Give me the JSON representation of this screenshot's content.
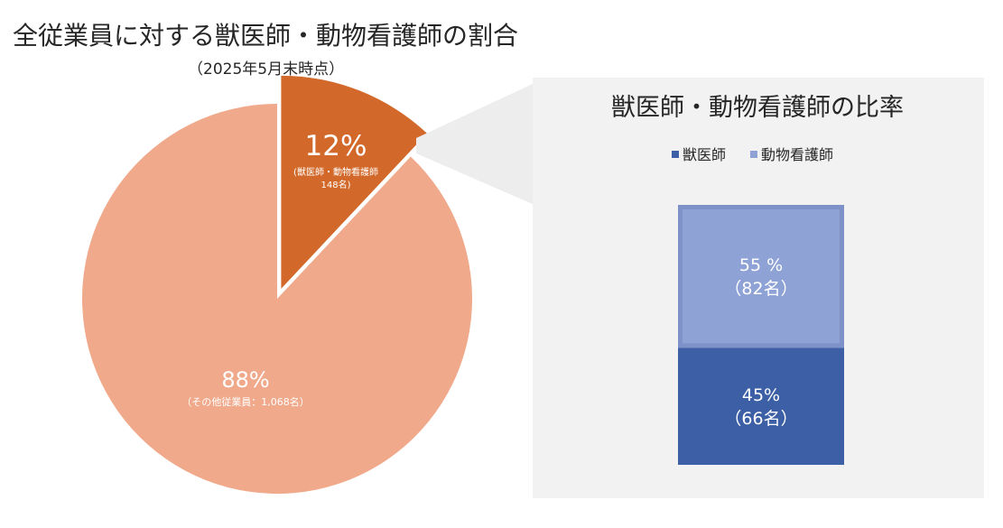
{
  "header": {
    "title": "全従業員に対する獣医師・動物看護師の割合",
    "subtitle": "（2025年5月末時点）"
  },
  "colors": {
    "pie_main": "#F0A98B",
    "pie_highlight": "#D2692A",
    "bar_vet": "#3C5FA6",
    "bar_nurse": "#8FA2D6",
    "bar_nurse_border": "#7E91C8",
    "panel_bg": "#F2F2F2",
    "connector": "#EDEDED"
  },
  "chart_data": [
    {
      "type": "pie",
      "title": "全従業員に対する獣医師・動物看護師の割合",
      "subtitle": "（2025年5月末時点）",
      "slices": [
        {
          "label": "獣医師・動物看護師",
          "value": 12,
          "count": 148,
          "pct_label": "12%",
          "sub_label_1": "(獣医師・動物看護師",
          "sub_label_2": "148名)"
        },
        {
          "label": "その他従業員",
          "value": 88,
          "count": 1068,
          "pct_label": "88%",
          "sub_label_1": "（その他従業員：1,068名）"
        }
      ]
    },
    {
      "type": "bar",
      "title": "獣医師・動物看護師の比率",
      "legend_position": "top",
      "series": [
        {
          "name": "獣医師",
          "value": 45,
          "count": 66,
          "pct_label": "45%",
          "count_label": "（66名）"
        },
        {
          "name": "動物看護師",
          "value": 55,
          "count": 82,
          "pct_label": "55 %",
          "count_label": "（82名）"
        }
      ]
    }
  ]
}
